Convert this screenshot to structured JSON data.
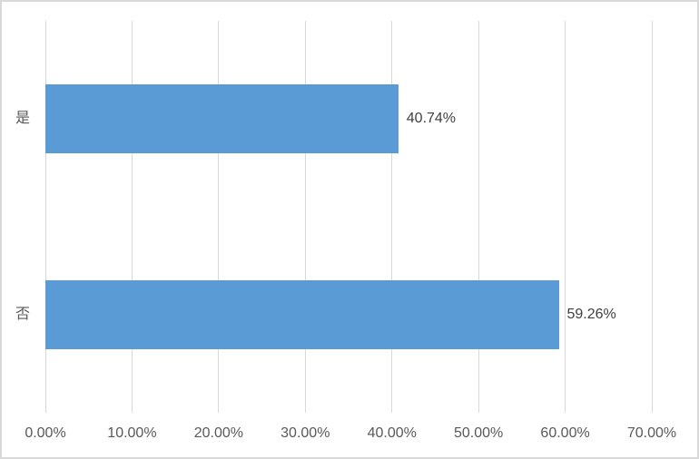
{
  "chart_data": {
    "type": "bar",
    "orientation": "horizontal",
    "title": "",
    "legend": "none",
    "grid": "vertical-major-only",
    "categories": [
      "是",
      "否"
    ],
    "values": [
      40.74,
      59.26
    ],
    "data_labels": [
      "40.74%",
      "59.26%"
    ],
    "x_tick_values": [
      0,
      10,
      20,
      30,
      40,
      50,
      60,
      70
    ],
    "x_tick_labels": [
      "0.00%",
      "10.00%",
      "20.00%",
      "30.00%",
      "40.00%",
      "50.00%",
      "60.00%",
      "70.00%"
    ],
    "xlim": [
      0,
      70
    ],
    "colors": {
      "bar": "#5B9BD5",
      "gridline": "#D9D9D9",
      "frame_border": "#D9D9D9",
      "background": "#FFFFFF",
      "axis_text": "#595959",
      "data_label_text": "#404040",
      "category_text": "#595959"
    }
  }
}
